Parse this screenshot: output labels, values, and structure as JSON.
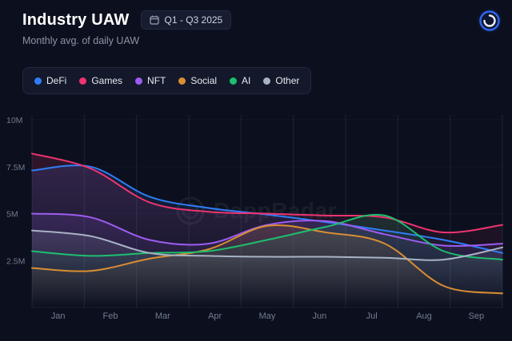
{
  "header": {
    "title": "Industry UAW",
    "period": "Q1 - Q3 2025",
    "subtitle": "Monthly avg. of daily UAW"
  },
  "brand": {
    "watermark_text": "DappRadar"
  },
  "legend": {
    "items": [
      {
        "label": "DeFi",
        "color": "#2f7df6"
      },
      {
        "label": "Games",
        "color": "#ed3470"
      },
      {
        "label": "NFT",
        "color": "#9d5cf0"
      },
      {
        "label": "Social",
        "color": "#d98e32"
      },
      {
        "label": "AI",
        "color": "#1dbf6e"
      },
      {
        "label": "Other",
        "color": "#a8b3c5"
      }
    ]
  },
  "chart_data": {
    "type": "line",
    "title": "Industry UAW",
    "subtitle": "Monthly avg. of daily UAW",
    "x": [
      "Jan",
      "Feb",
      "Mar",
      "Apr",
      "May",
      "Jun",
      "Jul",
      "Aug",
      "Sep"
    ],
    "unit": "millions of UAW",
    "series": [
      {
        "name": "DeFi",
        "color": "#2f7df6",
        "values": [
          7.3,
          7.5,
          5.9,
          5.3,
          4.95,
          4.55,
          4.1,
          3.6,
          2.9
        ]
      },
      {
        "name": "Games",
        "color": "#ed3470",
        "values": [
          8.2,
          7.4,
          5.6,
          5.1,
          5.0,
          4.9,
          4.8,
          4.0,
          4.4
        ]
      },
      {
        "name": "NFT",
        "color": "#9d5cf0",
        "values": [
          5.0,
          4.8,
          3.6,
          3.4,
          4.4,
          4.6,
          3.9,
          3.3,
          3.4
        ]
      },
      {
        "name": "Social",
        "color": "#d98e32",
        "values": [
          2.1,
          1.95,
          2.6,
          3.1,
          4.35,
          4.0,
          3.4,
          1.15,
          0.75
        ]
      },
      {
        "name": "AI",
        "color": "#1dbf6e",
        "values": [
          3.0,
          2.75,
          2.9,
          3.0,
          3.6,
          4.3,
          4.9,
          3.0,
          2.55
        ]
      },
      {
        "name": "Other",
        "color": "#a8b3c5",
        "values": [
          4.1,
          3.8,
          2.9,
          2.75,
          2.7,
          2.7,
          2.65,
          2.55,
          3.2
        ]
      }
    ],
    "yticks": [
      {
        "label": "10M",
        "value": 10
      },
      {
        "label": "7.5M",
        "value": 7.5
      },
      {
        "label": "5M",
        "value": 5
      },
      {
        "label": "2.5M",
        "value": 2.5
      }
    ],
    "ylim": [
      0,
      10
    ],
    "grid": "vertical",
    "legend_position": "top-left"
  }
}
